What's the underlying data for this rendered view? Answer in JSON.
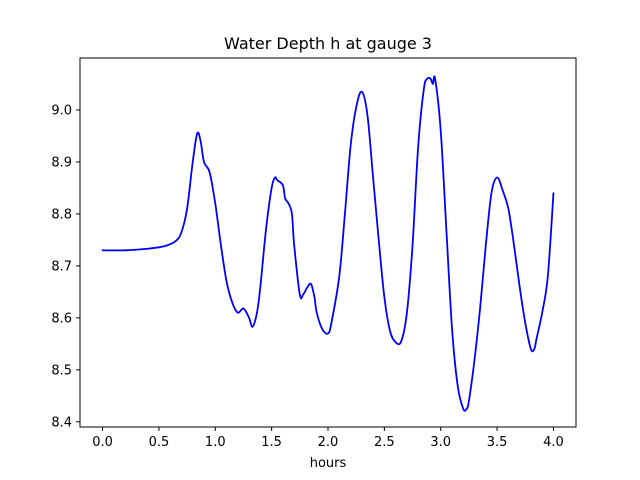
{
  "chart_data": {
    "type": "line",
    "title": "Water Depth h at gauge 3",
    "xlabel": "hours",
    "ylabel": "",
    "xlim": [
      -0.2,
      4.2
    ],
    "ylim": [
      8.39,
      9.1
    ],
    "xticks": [
      0.0,
      0.5,
      1.0,
      1.5,
      2.0,
      2.5,
      3.0,
      3.5,
      4.0
    ],
    "xtick_labels": [
      "0.0",
      "0.5",
      "1.0",
      "1.5",
      "2.0",
      "2.5",
      "3.0",
      "3.5",
      "4.0"
    ],
    "yticks": [
      8.4,
      8.5,
      8.6,
      8.7,
      8.8,
      8.9,
      9.0
    ],
    "ytick_labels": [
      "8.4",
      "8.5",
      "8.6",
      "8.7",
      "8.8",
      "8.9",
      "9.0"
    ],
    "grid": false,
    "legend": "none",
    "series": [
      {
        "color": "#0000ff",
        "x": [
          0.0,
          0.2,
          0.4,
          0.55,
          0.65,
          0.7,
          0.75,
          0.8,
          0.84,
          0.87,
          0.9,
          0.95,
          1.0,
          1.05,
          1.1,
          1.15,
          1.2,
          1.25,
          1.3,
          1.33,
          1.37,
          1.4,
          1.45,
          1.5,
          1.53,
          1.55,
          1.6,
          1.62,
          1.65,
          1.68,
          1.7,
          1.75,
          1.78,
          1.82,
          1.85,
          1.88,
          1.9,
          1.95,
          2.0,
          2.03,
          2.1,
          2.15,
          2.2,
          2.25,
          2.3,
          2.35,
          2.4,
          2.45,
          2.5,
          2.55,
          2.6,
          2.65,
          2.7,
          2.75,
          2.8,
          2.85,
          2.88,
          2.91,
          2.93,
          2.95,
          3.0,
          3.05,
          3.1,
          3.15,
          3.2,
          3.23,
          3.25,
          3.3,
          3.35,
          3.4,
          3.45,
          3.5,
          3.55,
          3.6,
          3.65,
          3.7,
          3.75,
          3.8,
          3.83,
          3.85,
          3.9,
          3.95,
          4.0
        ],
        "y": [
          8.73,
          8.73,
          8.733,
          8.738,
          8.748,
          8.765,
          8.81,
          8.9,
          8.955,
          8.94,
          8.9,
          8.88,
          8.82,
          8.74,
          8.67,
          8.63,
          8.61,
          8.618,
          8.6,
          8.583,
          8.61,
          8.66,
          8.77,
          8.85,
          8.87,
          8.865,
          8.855,
          8.83,
          8.82,
          8.8,
          8.74,
          8.645,
          8.645,
          8.66,
          8.665,
          8.64,
          8.61,
          8.578,
          8.57,
          8.59,
          8.68,
          8.8,
          8.93,
          9.005,
          9.035,
          8.99,
          8.87,
          8.75,
          8.64,
          8.575,
          8.553,
          8.555,
          8.61,
          8.74,
          8.93,
          9.04,
          9.06,
          9.06,
          9.05,
          9.06,
          8.96,
          8.77,
          8.58,
          8.47,
          8.425,
          8.425,
          8.44,
          8.52,
          8.62,
          8.74,
          8.84,
          8.87,
          8.845,
          8.81,
          8.74,
          8.66,
          8.59,
          8.54,
          8.54,
          8.56,
          8.61,
          8.68,
          8.84
        ]
      }
    ]
  }
}
